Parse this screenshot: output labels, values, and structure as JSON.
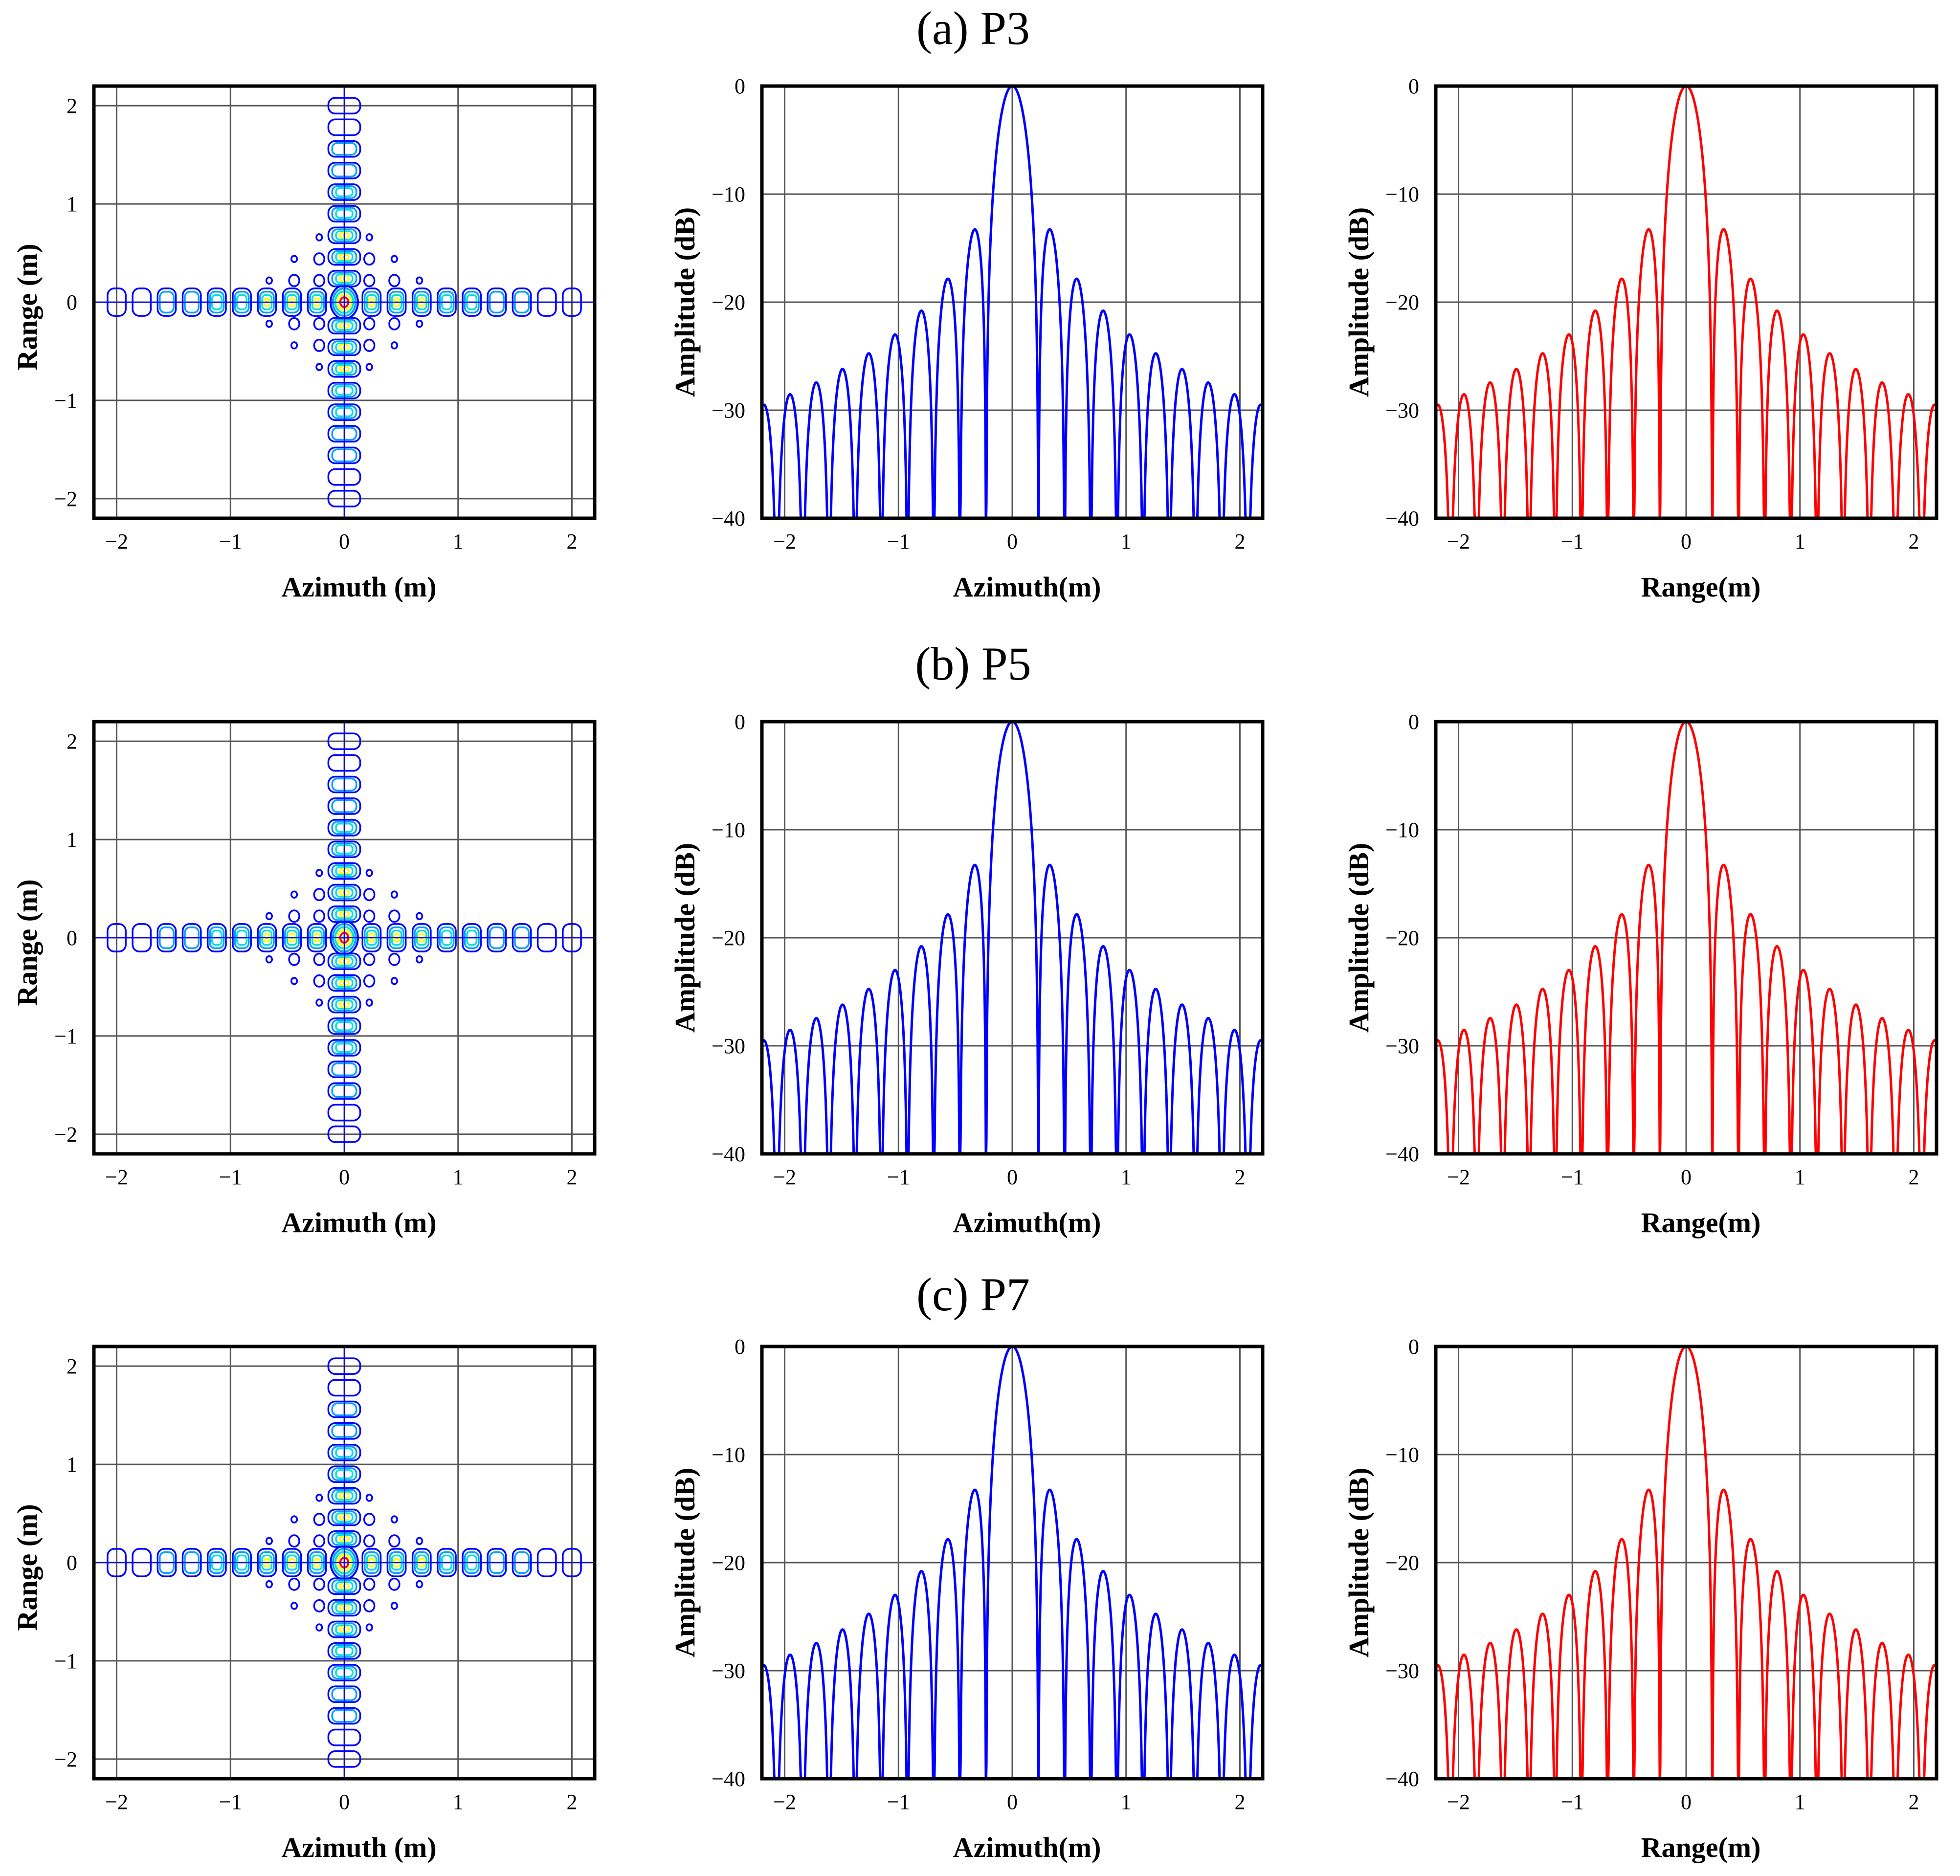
{
  "figure": {
    "rows": [
      {
        "title": "(a) P3",
        "contour": {
          "xlabel": "Azimuth (m)",
          "ylabel": "Range (m)",
          "xticks": [
            "−2",
            "−1",
            "0",
            "1",
            "2"
          ],
          "yticks": [
            "2",
            "1",
            "0",
            "−1",
            "−2"
          ]
        },
        "azimuth": {
          "xlabel": "Azimuth(m)",
          "ylabel": "Amplitude (dB)",
          "xticks": [
            "−2",
            "−1",
            "0",
            "1",
            "2"
          ],
          "yticks": [
            "0",
            "−10",
            "−20",
            "−30",
            "−40"
          ]
        },
        "range": {
          "xlabel": "Range(m)",
          "ylabel": "Amplitude (dB)",
          "xticks": [
            "−2",
            "−1",
            "0",
            "1",
            "2"
          ],
          "yticks": [
            "0",
            "−10",
            "−20",
            "−30",
            "−40"
          ]
        }
      },
      {
        "title": "(b) P5",
        "contour": {
          "xlabel": "Azimuth (m)",
          "ylabel": "Range (m)",
          "xticks": [
            "−2",
            "−1",
            "0",
            "1",
            "2"
          ],
          "yticks": [
            "2",
            "1",
            "0",
            "−1",
            "−2"
          ]
        },
        "azimuth": {
          "xlabel": "Azimuth(m)",
          "ylabel": "Amplitude (dB)",
          "xticks": [
            "−2",
            "−1",
            "0",
            "1",
            "2"
          ],
          "yticks": [
            "0",
            "−10",
            "−20",
            "−30",
            "−40"
          ]
        },
        "range": {
          "xlabel": "Range(m)",
          "ylabel": "Amplitude (dB)",
          "xticks": [
            "−2",
            "−1",
            "0",
            "1",
            "2"
          ],
          "yticks": [
            "0",
            "−10",
            "−20",
            "−30",
            "−40"
          ]
        }
      },
      {
        "title": "(c) P7",
        "contour": {
          "xlabel": "Azimuth (m)",
          "ylabel": "Range (m)",
          "xticks": [
            "−2",
            "−1",
            "0",
            "1",
            "2"
          ],
          "yticks": [
            "2",
            "1",
            "0",
            "−1",
            "−2"
          ]
        },
        "azimuth": {
          "xlabel": "Azimuth(m)",
          "ylabel": "Amplitude (dB)",
          "xticks": [
            "−2",
            "−1",
            "0",
            "1",
            "2"
          ],
          "yticks": [
            "0",
            "−10",
            "−20",
            "−30",
            "−40"
          ]
        },
        "range": {
          "xlabel": "Range(m)",
          "ylabel": "Amplitude (dB)",
          "xticks": [
            "−2",
            "−1",
            "0",
            "1",
            "2"
          ],
          "yticks": [
            "0",
            "−10",
            "−20",
            "−30",
            "−40"
          ]
        }
      }
    ]
  },
  "chart_data": [
    {
      "panel": "(a) P3 contour",
      "type": "heatmap",
      "xlabel": "Azimuth (m)",
      "ylabel": "Range (m)",
      "xlim": [
        -2.2,
        2.2
      ],
      "ylim": [
        -2.2,
        2.2
      ],
      "xticks": [
        -2,
        -1,
        0,
        1,
        2
      ],
      "yticks": [
        -2,
        -1,
        0,
        1,
        2
      ],
      "peak": [
        0,
        0
      ],
      "sidelobe_spacing_az_m": 0.22,
      "sidelobe_spacing_rg_m": 0.22,
      "contour_colors": [
        "#0000ff",
        "#00a0ff",
        "#00e0e0",
        "#ffff00",
        "#ff0000"
      ]
    },
    {
      "panel": "(a) P3 azimuth profile",
      "type": "line",
      "xlabel": "Azimuth(m)",
      "ylabel": "Amplitude (dB)",
      "xlim": [
        -2.2,
        2.2
      ],
      "ylim": [
        -40,
        0
      ],
      "xticks": [
        -2,
        -1,
        0,
        1,
        2
      ],
      "yticks": [
        0,
        -10,
        -20,
        -30,
        -40
      ],
      "color": "#0000ff",
      "mainlobe_peak_db": 0,
      "first_sidelobe_db": -13.2,
      "main_lobe_null_m": 0.23,
      "lobe_spacing_m": 0.22
    },
    {
      "panel": "(a) P3 range profile",
      "type": "line",
      "xlabel": "Range(m)",
      "ylabel": "Amplitude (dB)",
      "xlim": [
        -2.2,
        2.2
      ],
      "ylim": [
        -40,
        0
      ],
      "xticks": [
        -2,
        -1,
        0,
        1,
        2
      ],
      "yticks": [
        0,
        -10,
        -20,
        -30,
        -40
      ],
      "color": "#ff0000",
      "mainlobe_peak_db": 0,
      "first_sidelobe_db": -13.2,
      "main_lobe_null_m": 0.23,
      "lobe_spacing_m": 0.22
    },
    {
      "panel": "(b) P5 contour",
      "type": "heatmap",
      "xlabel": "Azimuth (m)",
      "ylabel": "Range (m)",
      "xlim": [
        -2.2,
        2.2
      ],
      "ylim": [
        -2.2,
        2.2
      ],
      "xticks": [
        -2,
        -1,
        0,
        1,
        2
      ],
      "yticks": [
        -2,
        -1,
        0,
        1,
        2
      ],
      "peak": [
        0,
        0
      ],
      "sidelobe_spacing_az_m": 0.22,
      "sidelobe_spacing_rg_m": 0.22,
      "contour_colors": [
        "#0000ff",
        "#00a0ff",
        "#00e0e0",
        "#ffff00",
        "#ff0000"
      ]
    },
    {
      "panel": "(b) P5 azimuth profile",
      "type": "line",
      "xlabel": "Azimuth(m)",
      "ylabel": "Amplitude (dB)",
      "xlim": [
        -2.2,
        2.2
      ],
      "ylim": [
        -40,
        0
      ],
      "xticks": [
        -2,
        -1,
        0,
        1,
        2
      ],
      "yticks": [
        0,
        -10,
        -20,
        -30,
        -40
      ],
      "color": "#0000ff",
      "mainlobe_peak_db": 0,
      "first_sidelobe_db": -13.2,
      "main_lobe_null_m": 0.23,
      "lobe_spacing_m": 0.22
    },
    {
      "panel": "(b) P5 range profile",
      "type": "line",
      "xlabel": "Range(m)",
      "ylabel": "Amplitude (dB)",
      "xlim": [
        -2.2,
        2.2
      ],
      "ylim": [
        -40,
        0
      ],
      "xticks": [
        -2,
        -1,
        0,
        1,
        2
      ],
      "yticks": [
        0,
        -10,
        -20,
        -30,
        -40
      ],
      "color": "#ff0000",
      "mainlobe_peak_db": 0,
      "first_sidelobe_db": -13.2,
      "main_lobe_null_m": 0.23,
      "lobe_spacing_m": 0.22
    },
    {
      "panel": "(c) P7 contour",
      "type": "heatmap",
      "xlabel": "Azimuth (m)",
      "ylabel": "Range (m)",
      "xlim": [
        -2.2,
        2.2
      ],
      "ylim": [
        -2.2,
        2.2
      ],
      "xticks": [
        -2,
        -1,
        0,
        1,
        2
      ],
      "yticks": [
        -2,
        -1,
        0,
        1,
        2
      ],
      "peak": [
        0,
        0
      ],
      "sidelobe_spacing_az_m": 0.22,
      "sidelobe_spacing_rg_m": 0.22,
      "contour_colors": [
        "#0000ff",
        "#00a0ff",
        "#00e0e0",
        "#ffff00",
        "#ff0000"
      ]
    },
    {
      "panel": "(c) P7 azimuth profile",
      "type": "line",
      "xlabel": "Azimuth(m)",
      "ylabel": "Amplitude (dB)",
      "xlim": [
        -2.2,
        2.2
      ],
      "ylim": [
        -40,
        0
      ],
      "xticks": [
        -2,
        -1,
        0,
        1,
        2
      ],
      "yticks": [
        0,
        -10,
        -20,
        -30,
        -40
      ],
      "color": "#0000ff",
      "mainlobe_peak_db": 0,
      "first_sidelobe_db": -13.2,
      "main_lobe_null_m": 0.23,
      "lobe_spacing_m": 0.22
    },
    {
      "panel": "(c) P7 range profile",
      "type": "line",
      "xlabel": "Range(m)",
      "ylabel": "Amplitude (dB)",
      "xlim": [
        -2.2,
        2.2
      ],
      "ylim": [
        -40,
        0
      ],
      "xticks": [
        -2,
        -1,
        0,
        1,
        2
      ],
      "yticks": [
        0,
        -10,
        -20,
        -30,
        -40
      ],
      "color": "#ff0000",
      "mainlobe_peak_db": 0,
      "first_sidelobe_db": -13.2,
      "main_lobe_null_m": 0.23,
      "lobe_spacing_m": 0.22
    }
  ]
}
